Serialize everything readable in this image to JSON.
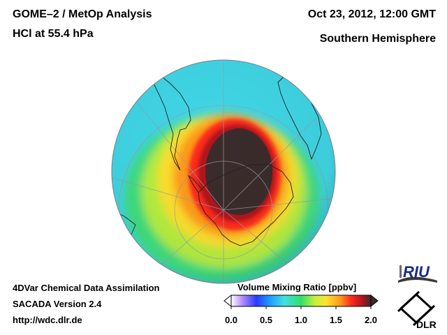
{
  "header": {
    "title_line1": "GOME–2 / MetOp Analysis",
    "title_line2": "HCl at 55.4 hPa",
    "datetime": "Oct 23, 2012, 12:00 GMT",
    "region": "Southern Hemisphere"
  },
  "footer": {
    "line1": "4DVar Chemical Data Assimilation",
    "line2": "SACADA Version 2.4",
    "url": "http://wdc.dlr.de"
  },
  "colorbar": {
    "title": "Volume Mixing Ratio [ppbv]",
    "ticks": [
      "0.0",
      "0.5",
      "1.0",
      "1.5",
      "2.0"
    ],
    "colors": [
      "#ffffff",
      "#b48cff",
      "#2a3bff",
      "#1ea0ff",
      "#40e0e0",
      "#2fe06a",
      "#c8f03c",
      "#ffe12e",
      "#ff9a1e",
      "#ff2a1e",
      "#b0141e",
      "#3a2a2a"
    ]
  },
  "logos": {
    "riu": "RIU",
    "dlr": "DLR"
  },
  "map": {
    "projection": "orthographic-south-polar",
    "field": "HCl volume mixing ratio",
    "colors": {
      "background": "#40d8e8",
      "mid": "#3fe080",
      "ring": "#ffe12e",
      "edge": "#ff2a1e",
      "core": "#3b2c2c"
    }
  }
}
